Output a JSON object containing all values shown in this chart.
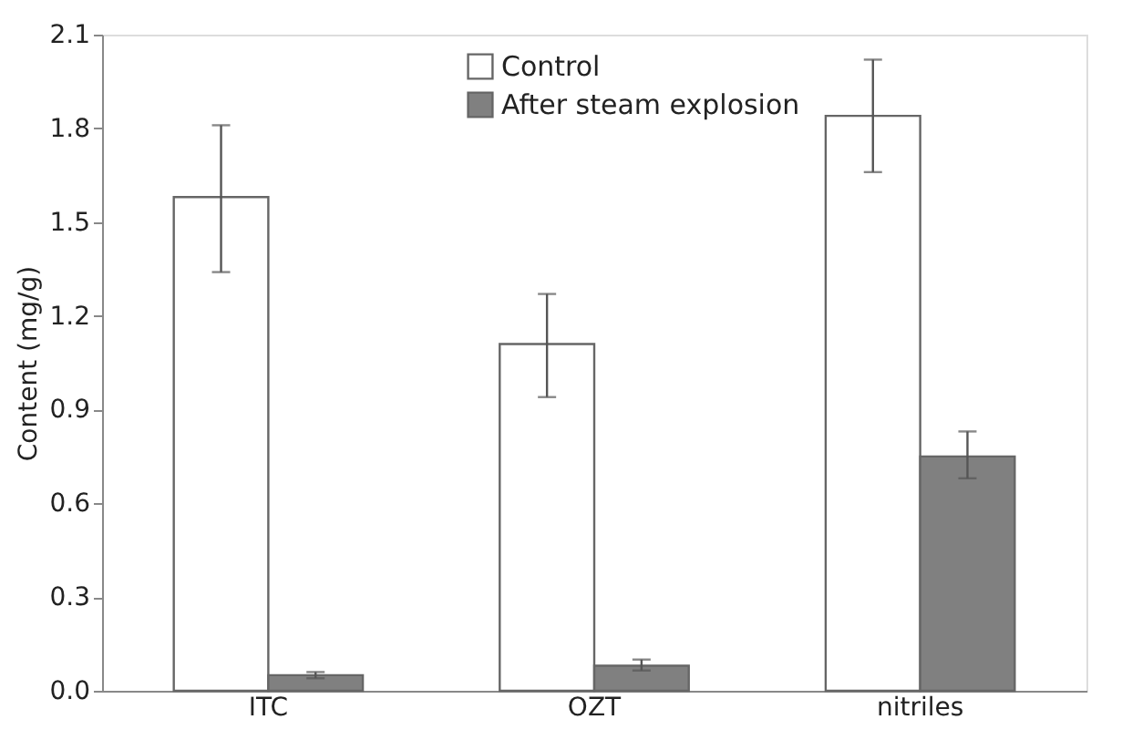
{
  "chart_data": {
    "type": "bar",
    "ylabel": "Content (mg/g)",
    "categories": [
      "ITC",
      "OZT",
      "nitriles"
    ],
    "series": [
      {
        "name": "Control",
        "color": "#ffffff",
        "values": [
          1.58,
          1.11,
          1.84
        ],
        "errors": [
          [
            1.34,
            1.81
          ],
          [
            0.94,
            1.27
          ],
          [
            1.66,
            2.02
          ]
        ]
      },
      {
        "name": "After steam explosion",
        "color": "#808080",
        "values": [
          0.05,
          0.08,
          0.75
        ],
        "errors": [
          [
            0.04,
            0.06
          ],
          [
            0.065,
            0.1
          ],
          [
            0.68,
            0.83
          ]
        ]
      }
    ],
    "ylim": [
      0,
      2.1
    ],
    "yticks": [
      {
        "value": 0,
        "label": "0.0"
      },
      0.3,
      0.6,
      0.9,
      1.2,
      1.5,
      1.8,
      2.1
    ],
    "grid": false,
    "legend": "top"
  }
}
